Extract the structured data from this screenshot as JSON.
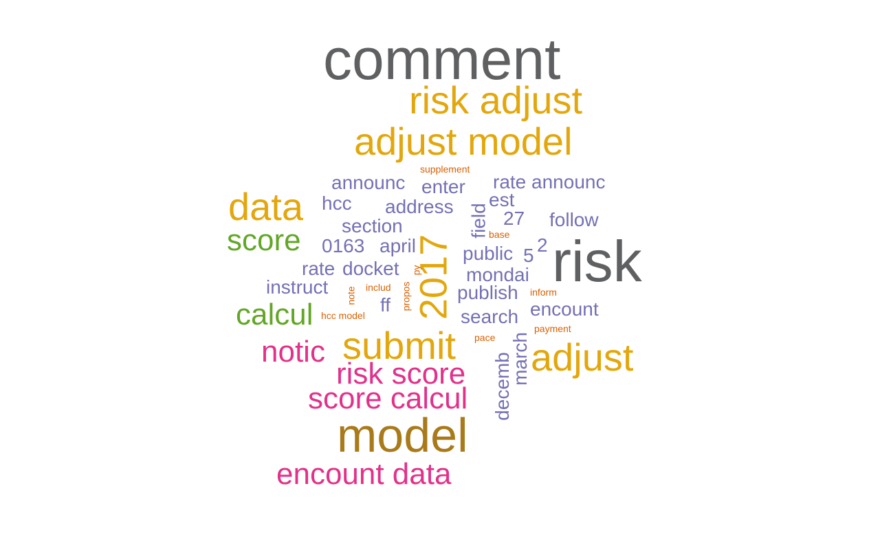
{
  "colors": {
    "gray": "#5f6062",
    "gold": "#e3a70d",
    "brown": "#a97a1a",
    "pink": "#e2318a",
    "green": "#63a626",
    "purple": "#7470b4",
    "orange": "#d95f02"
  },
  "words": [
    {
      "text": "comment",
      "weight": 1.0,
      "color": "gray"
    },
    {
      "text": "risk",
      "weight": 0.92,
      "color": "gray"
    },
    {
      "text": "model",
      "weight": 0.85,
      "color": "brown"
    },
    {
      "text": "risk adjust",
      "weight": 0.6,
      "color": "gold"
    },
    {
      "text": "adjust model",
      "weight": 0.6,
      "color": "gold"
    },
    {
      "text": "adjust",
      "weight": 0.6,
      "color": "gold"
    },
    {
      "text": "submit",
      "weight": 0.6,
      "color": "gold"
    },
    {
      "text": "data",
      "weight": 0.6,
      "color": "gold"
    },
    {
      "text": "2017",
      "weight": 0.6,
      "color": "gold"
    },
    {
      "text": "risk score",
      "weight": 0.45,
      "color": "pink"
    },
    {
      "text": "score calcul",
      "weight": 0.45,
      "color": "pink"
    },
    {
      "text": "encount data",
      "weight": 0.45,
      "color": "pink"
    },
    {
      "text": "notic",
      "weight": 0.45,
      "color": "pink"
    },
    {
      "text": "score",
      "weight": 0.45,
      "color": "green"
    },
    {
      "text": "calcul",
      "weight": 0.45,
      "color": "green"
    },
    {
      "text": "announc",
      "weight": 0.3,
      "color": "purple"
    },
    {
      "text": "enter",
      "weight": 0.3,
      "color": "purple"
    },
    {
      "text": "rate announc",
      "weight": 0.3,
      "color": "purple"
    },
    {
      "text": "hcc",
      "weight": 0.3,
      "color": "purple"
    },
    {
      "text": "address",
      "weight": 0.3,
      "color": "purple"
    },
    {
      "text": "est",
      "weight": 0.3,
      "color": "purple"
    },
    {
      "text": "27",
      "weight": 0.3,
      "color": "purple"
    },
    {
      "text": "follow",
      "weight": 0.3,
      "color": "purple"
    },
    {
      "text": "section",
      "weight": 0.3,
      "color": "purple"
    },
    {
      "text": "field",
      "weight": 0.3,
      "color": "purple"
    },
    {
      "text": "0163",
      "weight": 0.3,
      "color": "purple"
    },
    {
      "text": "april",
      "weight": 0.3,
      "color": "purple"
    },
    {
      "text": "2",
      "weight": 0.3,
      "color": "purple"
    },
    {
      "text": "public",
      "weight": 0.3,
      "color": "purple"
    },
    {
      "text": "5",
      "weight": 0.3,
      "color": "purple"
    },
    {
      "text": "rate",
      "weight": 0.3,
      "color": "purple"
    },
    {
      "text": "docket",
      "weight": 0.3,
      "color": "purple"
    },
    {
      "text": "mondai",
      "weight": 0.3,
      "color": "purple"
    },
    {
      "text": "instruct",
      "weight": 0.3,
      "color": "purple"
    },
    {
      "text": "publish",
      "weight": 0.3,
      "color": "purple"
    },
    {
      "text": "encount",
      "weight": 0.3,
      "color": "purple"
    },
    {
      "text": "ff",
      "weight": 0.3,
      "color": "purple"
    },
    {
      "text": "search",
      "weight": 0.3,
      "color": "purple"
    },
    {
      "text": "march",
      "weight": 0.3,
      "color": "purple"
    },
    {
      "text": "decemb",
      "weight": 0.3,
      "color": "purple"
    },
    {
      "text": "supplement",
      "weight": 0.15,
      "color": "orange"
    },
    {
      "text": "base",
      "weight": 0.15,
      "color": "orange"
    },
    {
      "text": "py",
      "weight": 0.15,
      "color": "orange"
    },
    {
      "text": "includ",
      "weight": 0.15,
      "color": "orange"
    },
    {
      "text": "note",
      "weight": 0.15,
      "color": "orange"
    },
    {
      "text": "propos",
      "weight": 0.15,
      "color": "orange"
    },
    {
      "text": "inform",
      "weight": 0.15,
      "color": "orange"
    },
    {
      "text": "hcc model",
      "weight": 0.15,
      "color": "orange"
    },
    {
      "text": "pace",
      "weight": 0.15,
      "color": "orange"
    },
    {
      "text": "payment",
      "weight": 0.15,
      "color": "orange"
    }
  ]
}
